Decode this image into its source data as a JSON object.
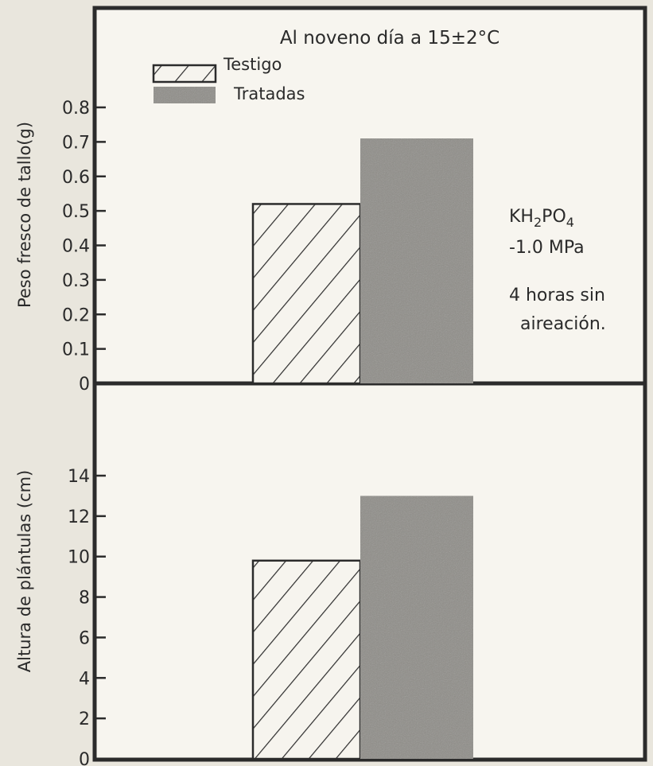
{
  "figure": {
    "title": "Al noveno día a 15±2°C",
    "annotations": {
      "compound": "KH2PO4",
      "pressure": "-1.0 MPa",
      "aeration_line1": "4 horas sin",
      "aeration_line2": "aireación."
    }
  },
  "chart_data": [
    {
      "type": "bar",
      "ylabel": "Peso fresco de tallo(g)",
      "ylim": [
        0,
        0.8
      ],
      "yticks": [
        "0",
        "0.1",
        "0.2",
        "0.3",
        "0.4",
        "0.5",
        "0.6",
        "0.7",
        "0.8"
      ],
      "legend": {
        "placement": "top-left",
        "entries": [
          "Testigo",
          "Tratadas"
        ]
      },
      "series": [
        {
          "name": "Testigo",
          "values": [
            0.52
          ],
          "pattern": "hatched"
        },
        {
          "name": "Tratadas",
          "values": [
            0.71
          ],
          "pattern": "solid-gray"
        }
      ],
      "colors": {
        "frame": "#2b2b2b",
        "tratadas_fill": "#8f8d88",
        "testigo_fill": "#f6f4ee"
      }
    },
    {
      "type": "bar",
      "ylabel": "Altura de plántulas (cm)",
      "ylim": [
        0,
        14
      ],
      "yticks": [
        "0",
        "2",
        "4",
        "6",
        "8",
        "10",
        "12",
        "14"
      ],
      "series": [
        {
          "name": "Testigo",
          "values": [
            9.8
          ],
          "pattern": "hatched"
        },
        {
          "name": "Tratadas",
          "values": [
            13.0
          ],
          "pattern": "solid-gray"
        }
      ]
    }
  ]
}
